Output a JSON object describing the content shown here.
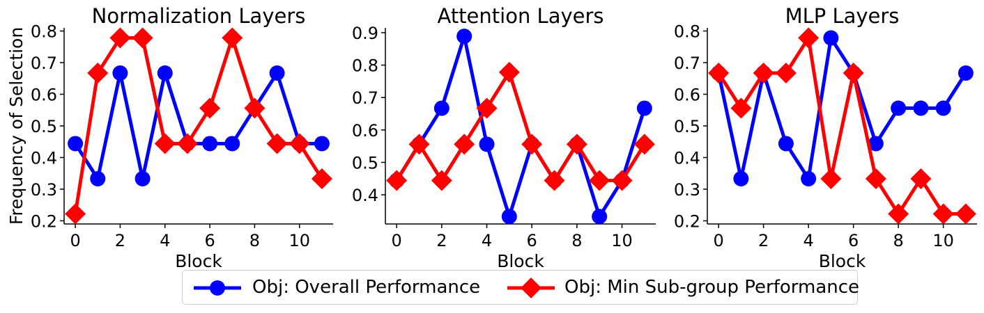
{
  "chart_data": [
    {
      "type": "line",
      "title": "Normalization Layers",
      "xlabel": "Block",
      "ylabel": "Frequency of Selection",
      "x": [
        0,
        1,
        2,
        3,
        4,
        5,
        6,
        7,
        8,
        9,
        10,
        11
      ],
      "xticks": [
        0,
        2,
        4,
        6,
        8,
        10
      ],
      "xlim": [
        -0.5,
        11.5
      ],
      "yticks": [
        0.2,
        0.3,
        0.4,
        0.5,
        0.6,
        0.7,
        0.8
      ],
      "ylim": [
        0.19,
        0.81
      ],
      "series": [
        {
          "name": "Obj: Overall Performance",
          "color": "#0000ff",
          "marker": "circle",
          "values": [
            0.444,
            0.333,
            0.667,
            0.333,
            0.667,
            0.444,
            0.444,
            0.444,
            0.556,
            0.667,
            0.444,
            0.444
          ]
        },
        {
          "name": "Obj: Min Sub-group Performance",
          "color": "#ff0000",
          "marker": "diamond",
          "values": [
            0.222,
            0.667,
            0.778,
            0.778,
            0.444,
            0.444,
            0.556,
            0.778,
            0.556,
            0.444,
            0.444,
            0.333
          ]
        }
      ]
    },
    {
      "type": "line",
      "title": "Attention Layers",
      "xlabel": "Block",
      "ylabel": "",
      "x": [
        0,
        1,
        2,
        3,
        4,
        5,
        6,
        7,
        8,
        9,
        10,
        11
      ],
      "xticks": [
        0,
        2,
        4,
        6,
        8,
        10
      ],
      "xlim": [
        -0.5,
        11.5
      ],
      "yticks": [
        0.4,
        0.5,
        0.6,
        0.7,
        0.8,
        0.9
      ],
      "ylim": [
        0.31,
        0.915
      ],
      "series": [
        {
          "name": "Obj: Overall Performance",
          "color": "#0000ff",
          "marker": "circle",
          "values": [
            0.444,
            0.556,
            0.667,
            0.889,
            0.556,
            0.333,
            0.556,
            0.444,
            0.556,
            0.333,
            0.444,
            0.667
          ]
        },
        {
          "name": "Obj: Min Sub-group Performance",
          "color": "#ff0000",
          "marker": "diamond",
          "values": [
            0.444,
            0.556,
            0.444,
            0.556,
            0.667,
            0.778,
            0.556,
            0.444,
            0.556,
            0.444,
            0.444,
            0.556
          ]
        }
      ]
    },
    {
      "type": "line",
      "title": "MLP Layers",
      "xlabel": "Block",
      "ylabel": "",
      "x": [
        0,
        1,
        2,
        3,
        4,
        5,
        6,
        7,
        8,
        9,
        10,
        11
      ],
      "xticks": [
        0,
        2,
        4,
        6,
        8,
        10
      ],
      "xlim": [
        -0.5,
        11.5
      ],
      "yticks": [
        0.2,
        0.3,
        0.4,
        0.5,
        0.6,
        0.7,
        0.8
      ],
      "ylim": [
        0.19,
        0.81
      ],
      "series": [
        {
          "name": "Obj: Overall Performance",
          "color": "#0000ff",
          "marker": "circle",
          "values": [
            0.667,
            0.333,
            0.667,
            0.444,
            0.333,
            0.778,
            0.667,
            0.444,
            0.556,
            0.556,
            0.556,
            0.667
          ]
        },
        {
          "name": "Obj: Min Sub-group Performance",
          "color": "#ff0000",
          "marker": "diamond",
          "values": [
            0.667,
            0.556,
            0.667,
            0.667,
            0.778,
            0.333,
            0.667,
            0.333,
            0.222,
            0.333,
            0.222,
            0.222
          ]
        }
      ]
    }
  ],
  "legend": {
    "placement": "bottom-center",
    "items": [
      {
        "label": "Obj: Overall Performance",
        "color": "#0000ff",
        "marker": "circle"
      },
      {
        "label": "Obj: Min Sub-group Performance",
        "color": "#ff0000",
        "marker": "diamond"
      }
    ]
  }
}
